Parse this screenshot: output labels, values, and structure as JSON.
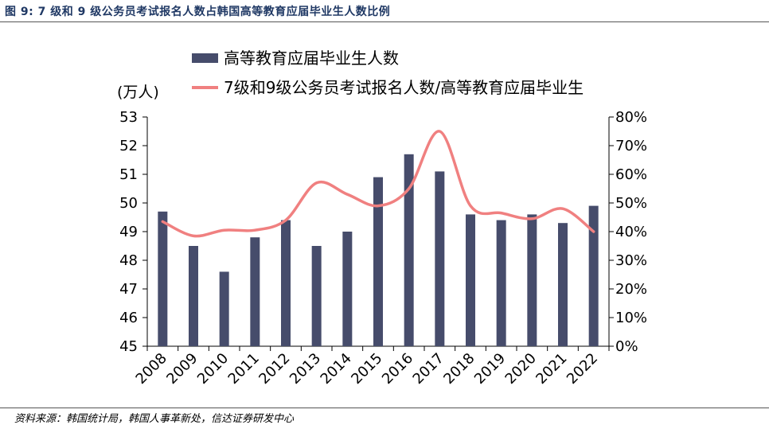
{
  "figure_title": "图 9: 7 级和 9 级公务员考试报名人数占韩国高等教育应届毕业生人数比例",
  "source_note": "资料来源：韩国统计局，韩国人事革新处，信达证券研发中心",
  "chart_data": {
    "type": "bar",
    "categories": [
      "2008",
      "2009",
      "2010",
      "2011",
      "2012",
      "2013",
      "2014",
      "2015",
      "2016",
      "2017",
      "2018",
      "2019",
      "2020",
      "2021",
      "2022"
    ],
    "y_unit_label": "(万人)",
    "ylim": [
      45,
      53
    ],
    "y_ticks": [
      45,
      46,
      47,
      48,
      49,
      50,
      51,
      52,
      53
    ],
    "y2lim": [
      0,
      80
    ],
    "y2_ticks": [
      "0%",
      "10%",
      "20%",
      "30%",
      "40%",
      "50%",
      "60%",
      "70%",
      "80%"
    ],
    "legend_position": "top",
    "series": [
      {
        "name": "高等教育应届毕业生人数",
        "type": "bar",
        "axis": "left",
        "color": "#464c6b",
        "values": [
          49.7,
          48.5,
          47.6,
          48.8,
          49.4,
          48.5,
          49.0,
          50.9,
          51.7,
          51.1,
          49.6,
          49.4,
          49.6,
          49.3,
          49.9
        ]
      },
      {
        "name": "7级和9级公务员考试报名人数/高等教育应届毕业生",
        "type": "line",
        "axis": "right",
        "unit": "%",
        "color": "#f08080",
        "values": [
          43.5,
          38.5,
          40.5,
          40.5,
          44,
          57,
          53,
          49,
          55,
          75,
          49,
          46.5,
          44.5,
          48,
          40
        ]
      }
    ]
  }
}
